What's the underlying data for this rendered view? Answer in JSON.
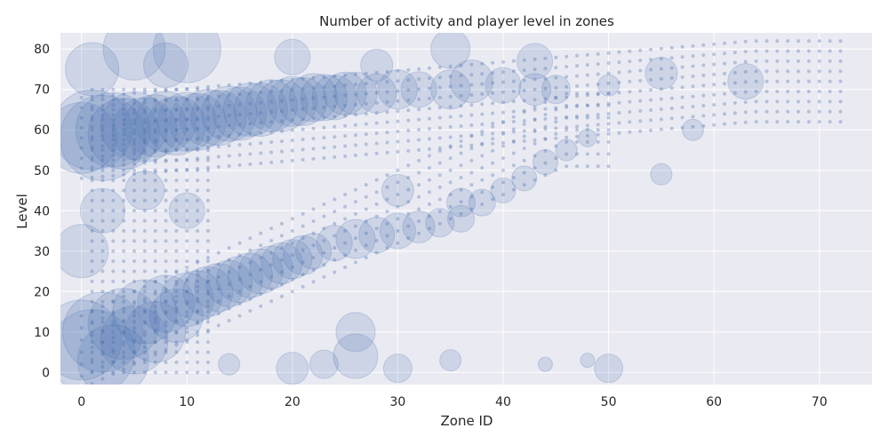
{
  "chart_data": {
    "type": "scatter",
    "title": "Number of activity and player level in zones",
    "xlabel": "Zone ID",
    "ylabel": "Level",
    "xlim": [
      -2,
      75
    ],
    "ylim": [
      -3,
      84
    ],
    "xticks": [
      0,
      10,
      20,
      30,
      40,
      50,
      60,
      70
    ],
    "yticks": [
      0,
      10,
      20,
      30,
      40,
      50,
      60,
      70,
      80
    ],
    "grid": true,
    "marker_color": "#4c72b0",
    "background_color": "#eaeaf2",
    "grid_color": "#ffffff",
    "size_encoding": "number of activity",
    "points": [
      {
        "x": 0,
        "y": 58,
        "r": 40
      },
      {
        "x": 1,
        "y": 60,
        "r": 45
      },
      {
        "x": 2,
        "y": 58,
        "r": 48
      },
      {
        "x": 3,
        "y": 60,
        "r": 42
      },
      {
        "x": 4,
        "y": 59,
        "r": 40
      },
      {
        "x": 5,
        "y": 61,
        "r": 38
      },
      {
        "x": 6,
        "y": 60,
        "r": 36
      },
      {
        "x": 7,
        "y": 61,
        "r": 35
      },
      {
        "x": 8,
        "y": 62,
        "r": 34
      },
      {
        "x": 9,
        "y": 61,
        "r": 33
      },
      {
        "x": 10,
        "y": 62,
        "r": 33
      },
      {
        "x": 11,
        "y": 62,
        "r": 32
      },
      {
        "x": 12,
        "y": 63,
        "r": 32
      },
      {
        "x": 13,
        "y": 63,
        "r": 31
      },
      {
        "x": 14,
        "y": 64,
        "r": 31
      },
      {
        "x": 15,
        "y": 64,
        "r": 30
      },
      {
        "x": 16,
        "y": 65,
        "r": 30
      },
      {
        "x": 17,
        "y": 65,
        "r": 30
      },
      {
        "x": 18,
        "y": 66,
        "r": 29
      },
      {
        "x": 19,
        "y": 66,
        "r": 29
      },
      {
        "x": 20,
        "y": 67,
        "r": 28
      },
      {
        "x": 21,
        "y": 67,
        "r": 27
      },
      {
        "x": 22,
        "y": 68,
        "r": 27
      },
      {
        "x": 23,
        "y": 68,
        "r": 26
      },
      {
        "x": 24,
        "y": 68,
        "r": 25
      },
      {
        "x": 25,
        "y": 69,
        "r": 24
      },
      {
        "x": 26,
        "y": 69,
        "r": 24
      },
      {
        "x": 28,
        "y": 69,
        "r": 22
      },
      {
        "x": 30,
        "y": 70,
        "r": 22
      },
      {
        "x": 32,
        "y": 70,
        "r": 20
      },
      {
        "x": 35,
        "y": 70,
        "r": 22
      },
      {
        "x": 37,
        "y": 72,
        "r": 24
      },
      {
        "x": 40,
        "y": 71,
        "r": 20
      },
      {
        "x": 43,
        "y": 70,
        "r": 18
      },
      {
        "x": 45,
        "y": 70,
        "r": 16
      },
      {
        "x": 50,
        "y": 71,
        "r": 12
      },
      {
        "x": 55,
        "y": 74,
        "r": 18
      },
      {
        "x": 63,
        "y": 72,
        "r": 20
      },
      {
        "x": 58,
        "y": 60,
        "r": 12
      },
      {
        "x": 55,
        "y": 49,
        "r": 12
      },
      {
        "x": 5,
        "y": 80,
        "r": 35
      },
      {
        "x": 10,
        "y": 80,
        "r": 38
      },
      {
        "x": 1,
        "y": 75,
        "r": 30
      },
      {
        "x": 20,
        "y": 78,
        "r": 20
      },
      {
        "x": 28,
        "y": 76,
        "r": 18
      },
      {
        "x": 35,
        "y": 80,
        "r": 22
      },
      {
        "x": 43,
        "y": 77,
        "r": 20
      },
      {
        "x": 8,
        "y": 76,
        "r": 25
      },
      {
        "x": 0,
        "y": 8,
        "r": 45
      },
      {
        "x": 1,
        "y": 5,
        "r": 48
      },
      {
        "x": 2,
        "y": 10,
        "r": 45
      },
      {
        "x": 3,
        "y": 3,
        "r": 40
      },
      {
        "x": 4,
        "y": 12,
        "r": 40
      },
      {
        "x": 5,
        "y": 8,
        "r": 38
      },
      {
        "x": 6,
        "y": 15,
        "r": 36
      },
      {
        "x": 7,
        "y": 10,
        "r": 34
      },
      {
        "x": 8,
        "y": 17,
        "r": 32
      },
      {
        "x": 9,
        "y": 14,
        "r": 30
      },
      {
        "x": 10,
        "y": 18,
        "r": 30
      },
      {
        "x": 11,
        "y": 19,
        "r": 28
      },
      {
        "x": 12,
        "y": 20,
        "r": 28
      },
      {
        "x": 13,
        "y": 21,
        "r": 27
      },
      {
        "x": 14,
        "y": 22,
        "r": 26
      },
      {
        "x": 15,
        "y": 23,
        "r": 26
      },
      {
        "x": 16,
        "y": 24,
        "r": 25
      },
      {
        "x": 17,
        "y": 25,
        "r": 25
      },
      {
        "x": 18,
        "y": 26,
        "r": 24
      },
      {
        "x": 19,
        "y": 27,
        "r": 23
      },
      {
        "x": 20,
        "y": 28,
        "r": 22
      },
      {
        "x": 21,
        "y": 29,
        "r": 22
      },
      {
        "x": 22,
        "y": 30,
        "r": 20
      },
      {
        "x": 24,
        "y": 32,
        "r": 20
      },
      {
        "x": 26,
        "y": 33,
        "r": 22
      },
      {
        "x": 28,
        "y": 34,
        "r": 20
      },
      {
        "x": 30,
        "y": 35,
        "r": 20
      },
      {
        "x": 32,
        "y": 36,
        "r": 18
      },
      {
        "x": 34,
        "y": 37,
        "r": 16
      },
      {
        "x": 36,
        "y": 38,
        "r": 15
      },
      {
        "x": 38,
        "y": 42,
        "r": 15
      },
      {
        "x": 40,
        "y": 45,
        "r": 14
      },
      {
        "x": 42,
        "y": 48,
        "r": 14
      },
      {
        "x": 44,
        "y": 52,
        "r": 14
      },
      {
        "x": 46,
        "y": 55,
        "r": 12
      },
      {
        "x": 48,
        "y": 58,
        "r": 10
      },
      {
        "x": 0,
        "y": 30,
        "r": 30
      },
      {
        "x": 2,
        "y": 40,
        "r": 25
      },
      {
        "x": 6,
        "y": 45,
        "r": 22
      },
      {
        "x": 10,
        "y": 40,
        "r": 20
      },
      {
        "x": 30,
        "y": 45,
        "r": 18
      },
      {
        "x": 36,
        "y": 42,
        "r": 16
      },
      {
        "x": 26,
        "y": 10,
        "r": 22
      },
      {
        "x": 26,
        "y": 4,
        "r": 25
      },
      {
        "x": 20,
        "y": 1,
        "r": 18
      },
      {
        "x": 23,
        "y": 2,
        "r": 16
      },
      {
        "x": 30,
        "y": 1,
        "r": 16
      },
      {
        "x": 35,
        "y": 3,
        "r": 12
      },
      {
        "x": 50,
        "y": 1,
        "r": 16
      },
      {
        "x": 14,
        "y": 2,
        "r": 12
      },
      {
        "x": 44,
        "y": 2,
        "r": 8
      },
      {
        "x": 48,
        "y": 3,
        "r": 8
      }
    ]
  }
}
